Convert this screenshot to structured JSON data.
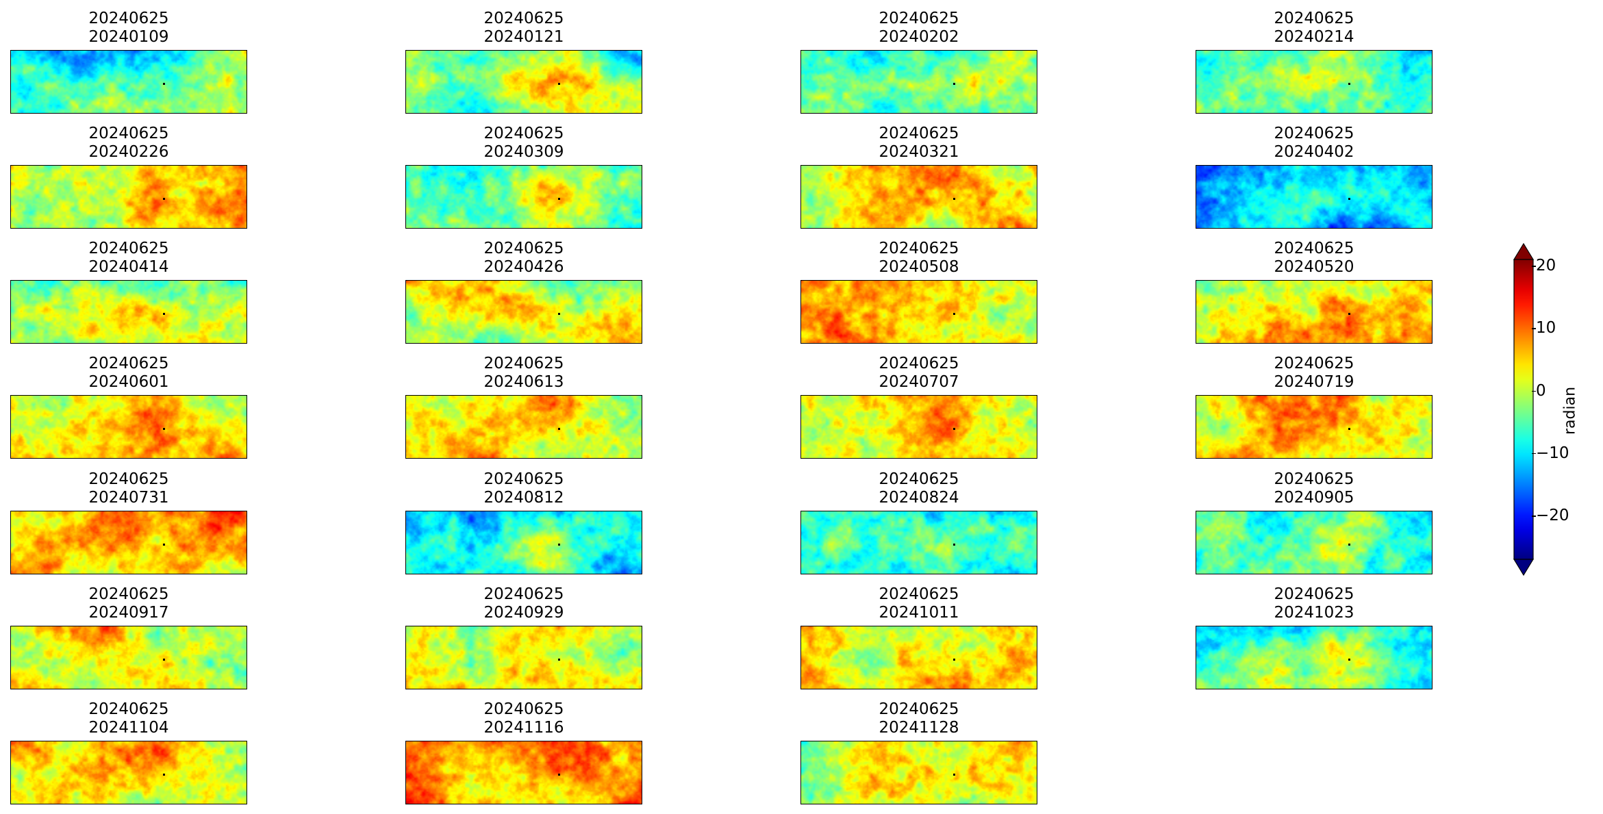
{
  "chart_data": {
    "type": "heatmap",
    "layout": {
      "rows": 7,
      "cols": 4
    },
    "panels": [
      {
        "title": [
          "20240625",
          "20240109"
        ],
        "bias": -6.0
      },
      {
        "title": [
          "20240625",
          "20240121"
        ],
        "bias": -2.0
      },
      {
        "title": [
          "20240625",
          "20240202"
        ],
        "bias": -2.5
      },
      {
        "title": [
          "20240625",
          "20240214"
        ],
        "bias": -4.0
      },
      {
        "title": [
          "20240625",
          "20240226"
        ],
        "bias": 1.5
      },
      {
        "title": [
          "20240625",
          "20240309"
        ],
        "bias": -2.5
      },
      {
        "title": [
          "20240625",
          "20240321"
        ],
        "bias": 3.0
      },
      {
        "title": [
          "20240625",
          "20240402"
        ],
        "bias": -9.0
      },
      {
        "title": [
          "20240625",
          "20240414"
        ],
        "bias": -2.0
      },
      {
        "title": [
          "20240625",
          "20240426"
        ],
        "bias": 1.0
      },
      {
        "title": [
          "20240625",
          "20240508"
        ],
        "bias": 1.5
      },
      {
        "title": [
          "20240625",
          "20240520"
        ],
        "bias": 0.5
      },
      {
        "title": [
          "20240625",
          "20240601"
        ],
        "bias": 0.0
      },
      {
        "title": [
          "20240625",
          "20240613"
        ],
        "bias": 0.5
      },
      {
        "title": [
          "20240625",
          "20240707"
        ],
        "bias": 0.5
      },
      {
        "title": [
          "20240625",
          "20240719"
        ],
        "bias": 2.0
      },
      {
        "title": [
          "20240625",
          "20240731"
        ],
        "bias": 3.5
      },
      {
        "title": [
          "20240625",
          "20240812"
        ],
        "bias": -7.0
      },
      {
        "title": [
          "20240625",
          "20240824"
        ],
        "bias": -4.0
      },
      {
        "title": [
          "20240625",
          "20240905"
        ],
        "bias": -4.0
      },
      {
        "title": [
          "20240625",
          "20240917"
        ],
        "bias": 1.0
      },
      {
        "title": [
          "20240625",
          "20240929"
        ],
        "bias": 0.5
      },
      {
        "title": [
          "20240625",
          "20241011"
        ],
        "bias": 1.5
      },
      {
        "title": [
          "20240625",
          "20241023"
        ],
        "bias": -4.5
      },
      {
        "title": [
          "20240625",
          "20241104"
        ],
        "bias": 0.5
      },
      {
        "title": [
          "20240625",
          "20241116"
        ],
        "bias": 5.0
      },
      {
        "title": [
          "20240625",
          "20241128"
        ],
        "bias": 0.5
      }
    ],
    "colorbar": {
      "label": "radian",
      "colormap": "jet",
      "vmin": -27,
      "vmax": 21,
      "extend": "both",
      "ticks": [
        20,
        10,
        0,
        -10,
        -20
      ],
      "tick_labels": [
        "20",
        "10",
        "0",
        "−10",
        "−20"
      ]
    },
    "colors": {
      "jet_dark_red": "#800000",
      "jet_dark_blue": "#000080"
    }
  }
}
